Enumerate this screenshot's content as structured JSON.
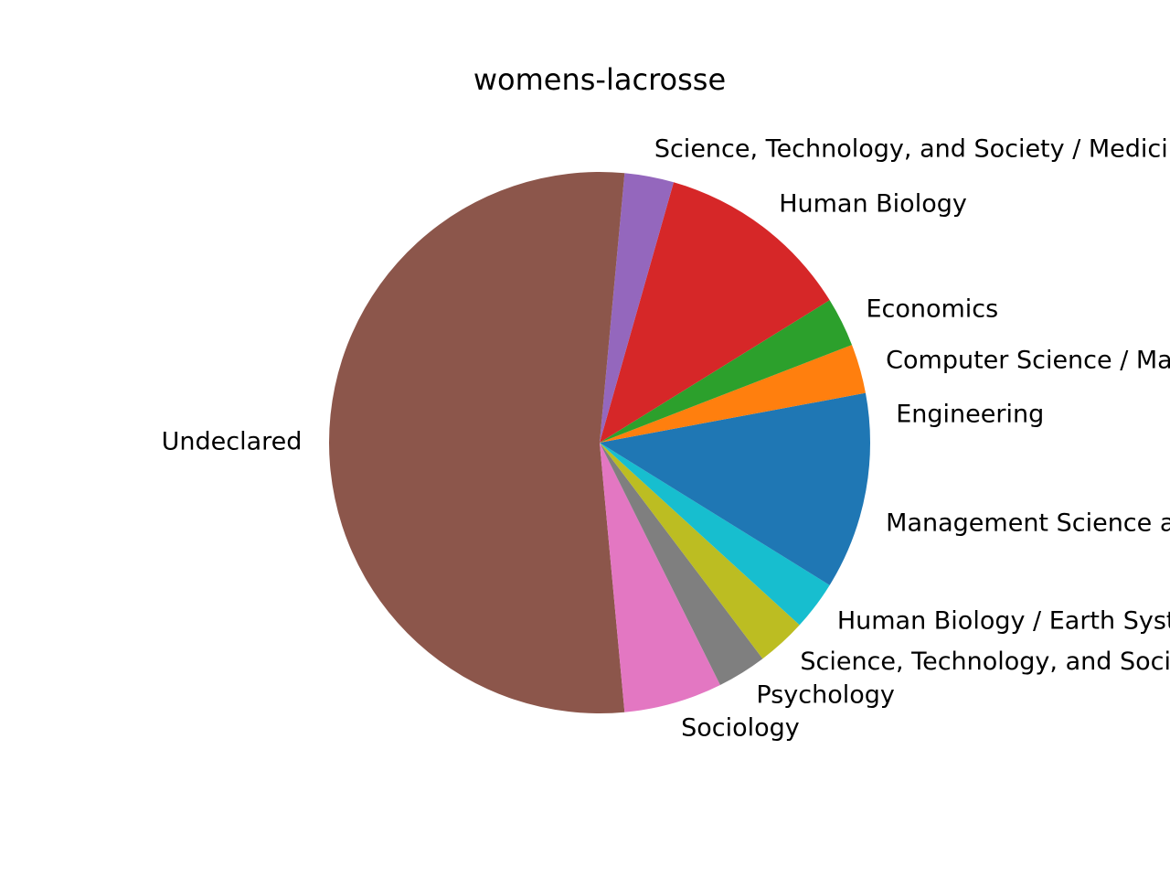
{
  "chart_data": {
    "type": "pie",
    "title": "womens-lacrosse",
    "start_angle_deg": 0,
    "direction": "counterclockwise",
    "slices": [
      {
        "label": "Engineering",
        "value": 1,
        "color": "#1f77b4"
      },
      {
        "label": "Computer Science / Mathematics",
        "value": 1,
        "color": "#ff7f0e"
      },
      {
        "label": "Economics",
        "value": 1,
        "color": "#2ca02c"
      },
      {
        "label": "Human Biology",
        "value": 4,
        "color": "#d62728"
      },
      {
        "label": "Science, Technology, and Society / Medicine",
        "value": 1,
        "color": "#9467bd"
      },
      {
        "label": "Undeclared",
        "value": 18,
        "color": "#8c564b"
      },
      {
        "label": "Sociology",
        "value": 2,
        "color": "#e377c2"
      },
      {
        "label": "Psychology",
        "value": 1,
        "color": "#7f7f7f"
      },
      {
        "label": "Science, Technology, and Society",
        "value": 1,
        "color": "#bcbd22"
      },
      {
        "label": "Human Biology / Earth Systems",
        "value": 1,
        "color": "#17becf"
      },
      {
        "label": "Management Science and Engineering",
        "value": 3,
        "color": "#1f77b4"
      }
    ]
  }
}
